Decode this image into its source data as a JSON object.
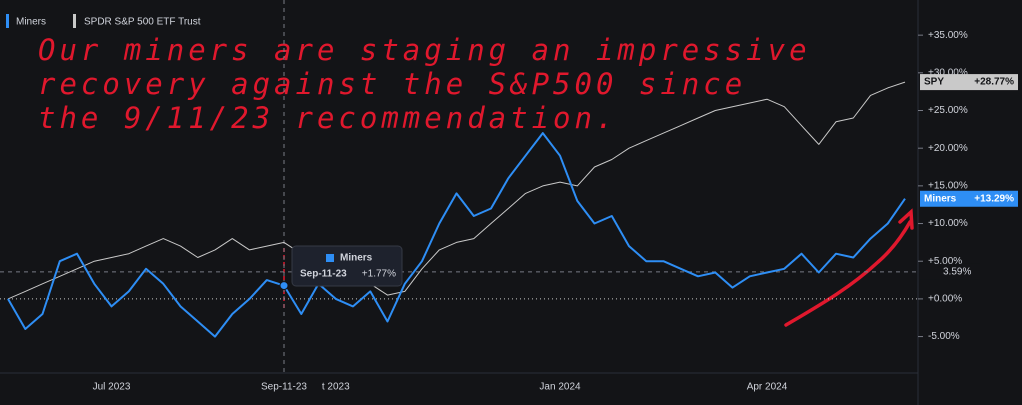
{
  "chart_data": {
    "type": "line",
    "categories": [
      null,
      null,
      null,
      null,
      null,
      null,
      "Jul 2023",
      null,
      null,
      null,
      null,
      null,
      null,
      null,
      null,
      null,
      null,
      null,
      null,
      "t 2023",
      null,
      null,
      null,
      null,
      null,
      null,
      null,
      null,
      null,
      null,
      null,
      null,
      "Jan 2024",
      null,
      null,
      null,
      null,
      null,
      null,
      null,
      null,
      null,
      null,
      null,
      "Apr 2024",
      null,
      null,
      null,
      null,
      null,
      null,
      null,
      null
    ],
    "series": [
      {
        "name": "Miners",
        "color": "#2e8ef5",
        "price_label": "+13.29%",
        "values": [
          0,
          -4,
          -2,
          5,
          6,
          2,
          -1,
          1,
          4,
          2,
          -1,
          -3,
          -5,
          -2,
          0,
          2.5,
          1.77,
          -2,
          2,
          0,
          -1,
          1,
          -3,
          2,
          5,
          10,
          14,
          11,
          12,
          16,
          19,
          22,
          19,
          13,
          10,
          11,
          7,
          5,
          5,
          4,
          3,
          3.5,
          1.5,
          3,
          3.5,
          4,
          6,
          3.5,
          6,
          5.5,
          8,
          10,
          13.29
        ]
      },
      {
        "name": "SPDR S&P 500 ETF Trust",
        "symbol": "SPY",
        "color": "#c9c9c9",
        "price_label": "+28.77%",
        "values": [
          0,
          1,
          2,
          3,
          4,
          5,
          5.5,
          6,
          7,
          8,
          7,
          5.5,
          6.5,
          8,
          6.5,
          7,
          7.5,
          6,
          5.5,
          4.5,
          3.5,
          2,
          0.5,
          1,
          4,
          6.5,
          7.5,
          8,
          10,
          12,
          14,
          15,
          15.5,
          15,
          17.5,
          18.5,
          20,
          21,
          22,
          23,
          24,
          25,
          25.5,
          26,
          26.5,
          25.5,
          23,
          20.5,
          23.5,
          24,
          27,
          28,
          28.77
        ]
      }
    ],
    "ylim": [
      -9.7,
      39
    ],
    "yticks": [
      {
        "value": -5,
        "label": "-5.00%"
      },
      {
        "value": 0,
        "label": "+0.00%"
      },
      {
        "value": 5,
        "label": "+5.00%"
      },
      {
        "value": 10,
        "label": "+10.00%"
      },
      {
        "value": 15,
        "label": "+15.00%"
      },
      {
        "value": 20,
        "label": "+20.00%"
      },
      {
        "value": 25,
        "label": "+25.00%"
      },
      {
        "value": 30,
        "label": "+30.00%"
      },
      {
        "value": 35,
        "label": "+35.00%"
      }
    ],
    "crosshair": {
      "index": 16,
      "x_label": "Sep-11-23",
      "y": {
        "value": 3.59,
        "label": "3.59%"
      }
    },
    "tooltip": {
      "value_label": "+1.77%"
    },
    "annotation": [
      "Our miners are staging an impressive",
      "recovery against the S&P500 since",
      "the 9/11/23 recommendation."
    ]
  }
}
